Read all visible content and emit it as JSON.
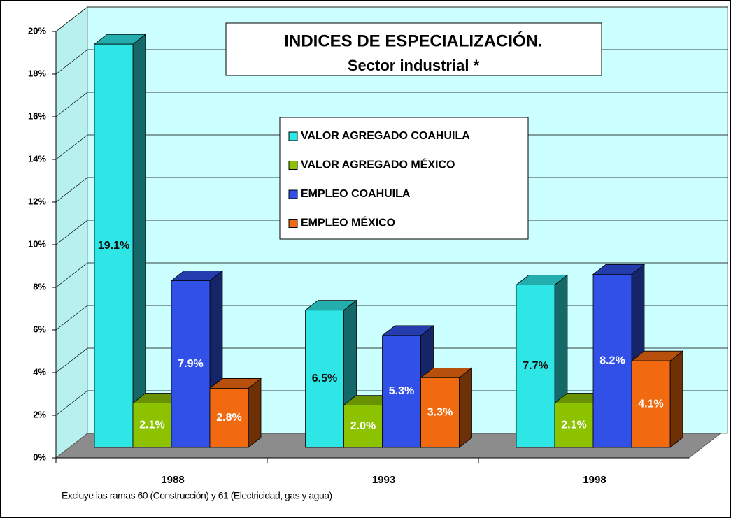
{
  "chart_data": {
    "type": "bar3d",
    "title": "INDICES DE ESPECIALIZACIÓN.",
    "subtitle": "Sector industrial *",
    "footnote": "Excluye las ramas 60 (Construcción) y 61 (Electricidad, gas y agua)",
    "categories": [
      "1988",
      "1993",
      "1998"
    ],
    "series": [
      {
        "name": "VALOR AGREGADO COAHUILA",
        "color": "#2ee6e6",
        "values": [
          19.1,
          6.5,
          7.7
        ],
        "value_labels": [
          "19.1%",
          "6.5%",
          "7.7%"
        ]
      },
      {
        "name": "VALOR AGREGADO MÉXICO",
        "color": "#8cc200",
        "values": [
          2.1,
          2.0,
          2.1
        ],
        "value_labels": [
          "2.1%",
          "2.0%",
          "2.1%"
        ]
      },
      {
        "name": "EMPLEO COAHUILA",
        "color": "#3050e8",
        "values": [
          7.9,
          5.3,
          8.2
        ],
        "value_labels": [
          "7.9%",
          "5.3%",
          "8.2%"
        ]
      },
      {
        "name": "EMPLEO MÉXICO",
        "color": "#f26a10",
        "values": [
          2.8,
          3.3,
          4.1
        ],
        "value_labels": [
          "2.8%",
          "3.3%",
          "4.1%"
        ]
      }
    ],
    "ylim": [
      0,
      20
    ],
    "yticks": [
      {
        "value": 0,
        "label": "0%"
      },
      {
        "value": 2,
        "label": "2%"
      },
      {
        "value": 4,
        "label": "4%"
      },
      {
        "value": 6,
        "label": "6%"
      },
      {
        "value": 8,
        "label": "8%"
      },
      {
        "value": 10,
        "label": "10%"
      },
      {
        "value": 12,
        "label": "12%"
      },
      {
        "value": 14,
        "label": "14%"
      },
      {
        "value": 16,
        "label": "16%"
      },
      {
        "value": 18,
        "label": "18%"
      },
      {
        "value": 20,
        "label": "20%"
      }
    ],
    "grid": true
  }
}
